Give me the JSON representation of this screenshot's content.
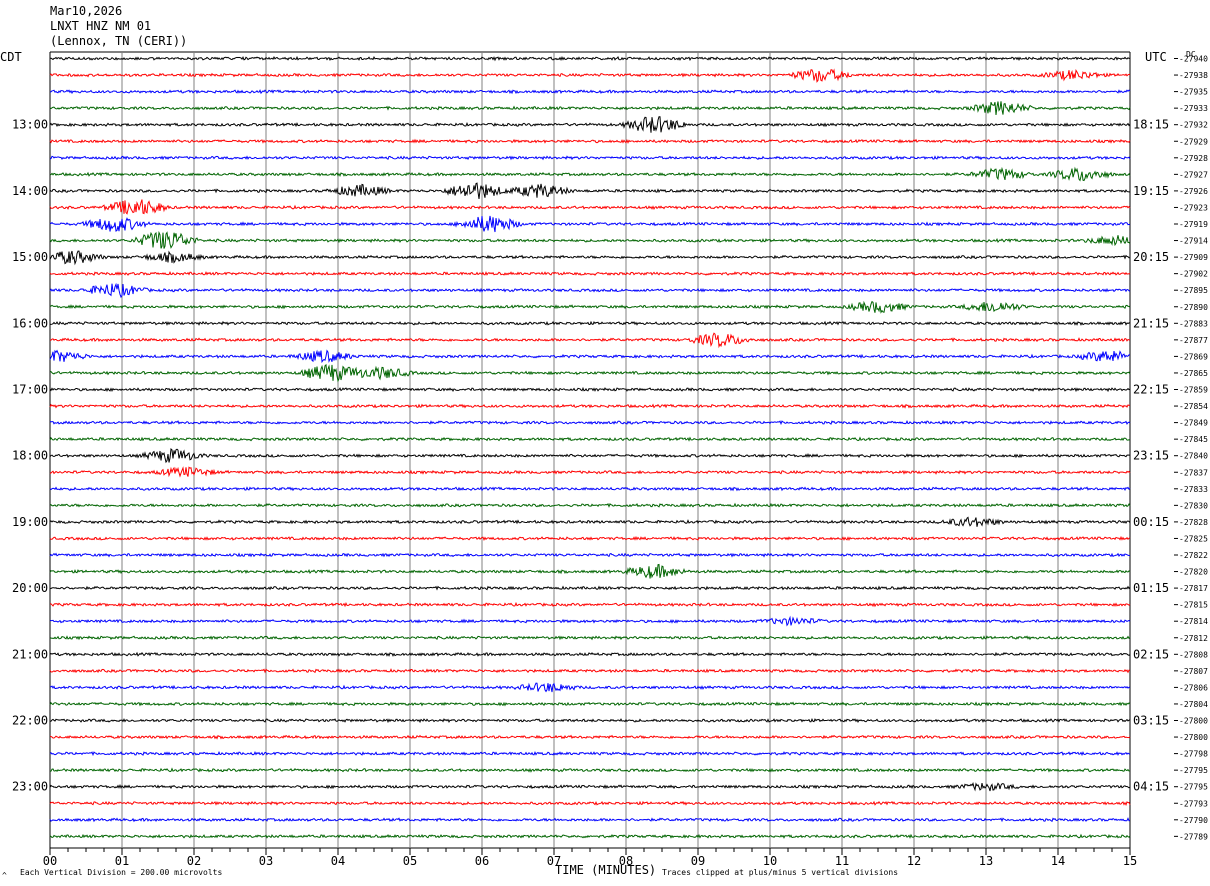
{
  "header": {
    "date": "Mar10,2026",
    "station": "LNXT HNZ NM 01",
    "location": "(Lennox, TN (CERI))"
  },
  "left_zone": "CDT",
  "right_zone": "UTC",
  "dc_label": "DC",
  "footer": {
    "scale_note": "Each Vertical Division =  200.00 microvolts",
    "xlabel": "TIME (MINUTES)",
    "clip_note": "Traces clipped at plus/minus 5 vertical divisions",
    "corner_mark": "^"
  },
  "colors": {
    "cycle": [
      "#000000",
      "#ff0000",
      "#0000ff",
      "#006400"
    ],
    "grid": "#808080"
  },
  "chart_data": {
    "type": "line",
    "title": "LNXT HNZ NM 01",
    "xlabel": "TIME (MINUTES)",
    "xlim": [
      0,
      15
    ],
    "x_ticks": [
      "00",
      "01",
      "02",
      "03",
      "04",
      "05",
      "06",
      "07",
      "08",
      "09",
      "10",
      "11",
      "12",
      "13",
      "14",
      "15"
    ],
    "left_hour_labels": [
      "13:00",
      "14:00",
      "15:00",
      "16:00",
      "17:00",
      "18:00",
      "19:00",
      "20:00",
      "21:00",
      "22:00",
      "23:00"
    ],
    "right_hour_labels": [
      "18:15",
      "19:15",
      "20:15",
      "21:15",
      "22:15",
      "23:15",
      "00:15",
      "01:15",
      "02:15",
      "03:15",
      "04:15"
    ],
    "dc_offsets": [
      "-27940",
      "-27938",
      "-27935",
      "-27933",
      "-27932",
      "-27929",
      "-27928",
      "-27927",
      "-27926",
      "-27923",
      "-27919",
      "-27914",
      "-27909",
      "-27902",
      "-27895",
      "-27890",
      "-27883",
      "-27877",
      "-27869",
      "-27865",
      "-27859",
      "-27854",
      "-27849",
      "-27845",
      "-27840",
      "-27837",
      "-27833",
      "-27830",
      "-27828",
      "-27825",
      "-27822",
      "-27820",
      "-27817",
      "-27815",
      "-27814",
      "-27812",
      "-27808",
      "-27807",
      "-27806",
      "-27804",
      "-27800",
      "-27800",
      "-27798",
      "-27795",
      "-27795",
      "-27793",
      "-27790",
      "-27789"
    ],
    "trace_count": 48,
    "minutes_per_trace": 15,
    "events": [
      {
        "trace": 1,
        "minute": 10.7,
        "amp": 3
      },
      {
        "trace": 1,
        "minute": 14.2,
        "amp": 2
      },
      {
        "trace": 3,
        "minute": 13.2,
        "amp": 3
      },
      {
        "trace": 4,
        "minute": 8.4,
        "amp": 4
      },
      {
        "trace": 7,
        "minute": 13.2,
        "amp": 2.5
      },
      {
        "trace": 7,
        "minute": 14.3,
        "amp": 3
      },
      {
        "trace": 8,
        "minute": 4.3,
        "amp": 2.5
      },
      {
        "trace": 8,
        "minute": 5.9,
        "amp": 4
      },
      {
        "trace": 8,
        "minute": 6.8,
        "amp": 3
      },
      {
        "trace": 9,
        "minute": 1.2,
        "amp": 4
      },
      {
        "trace": 10,
        "minute": 0.9,
        "amp": 3.5
      },
      {
        "trace": 10,
        "minute": 6.1,
        "amp": 4
      },
      {
        "trace": 11,
        "minute": 1.6,
        "amp": 5
      },
      {
        "trace": 11,
        "minute": 14.8,
        "amp": 2
      },
      {
        "trace": 12,
        "minute": 0.3,
        "amp": 3
      },
      {
        "trace": 12,
        "minute": 1.7,
        "amp": 2
      },
      {
        "trace": 14,
        "minute": 0.9,
        "amp": 3
      },
      {
        "trace": 15,
        "minute": 11.5,
        "amp": 2.5
      },
      {
        "trace": 15,
        "minute": 13.1,
        "amp": 2.5
      },
      {
        "trace": 17,
        "minute": 9.3,
        "amp": 3
      },
      {
        "trace": 18,
        "minute": 0.1,
        "amp": 2.5
      },
      {
        "trace": 18,
        "minute": 3.8,
        "amp": 2.5
      },
      {
        "trace": 18,
        "minute": 14.7,
        "amp": 2.5
      },
      {
        "trace": 19,
        "minute": 3.9,
        "amp": 4
      },
      {
        "trace": 19,
        "minute": 4.6,
        "amp": 2.5
      },
      {
        "trace": 24,
        "minute": 1.7,
        "amp": 3
      },
      {
        "trace": 25,
        "minute": 1.9,
        "amp": 2
      },
      {
        "trace": 28,
        "minute": 12.8,
        "amp": 2
      },
      {
        "trace": 31,
        "minute": 8.4,
        "amp": 3
      },
      {
        "trace": 34,
        "minute": 10.3,
        "amp": 1.5
      },
      {
        "trace": 38,
        "minute": 6.9,
        "amp": 2
      },
      {
        "trace": 44,
        "minute": 13.0,
        "amp": 1.5
      }
    ]
  }
}
